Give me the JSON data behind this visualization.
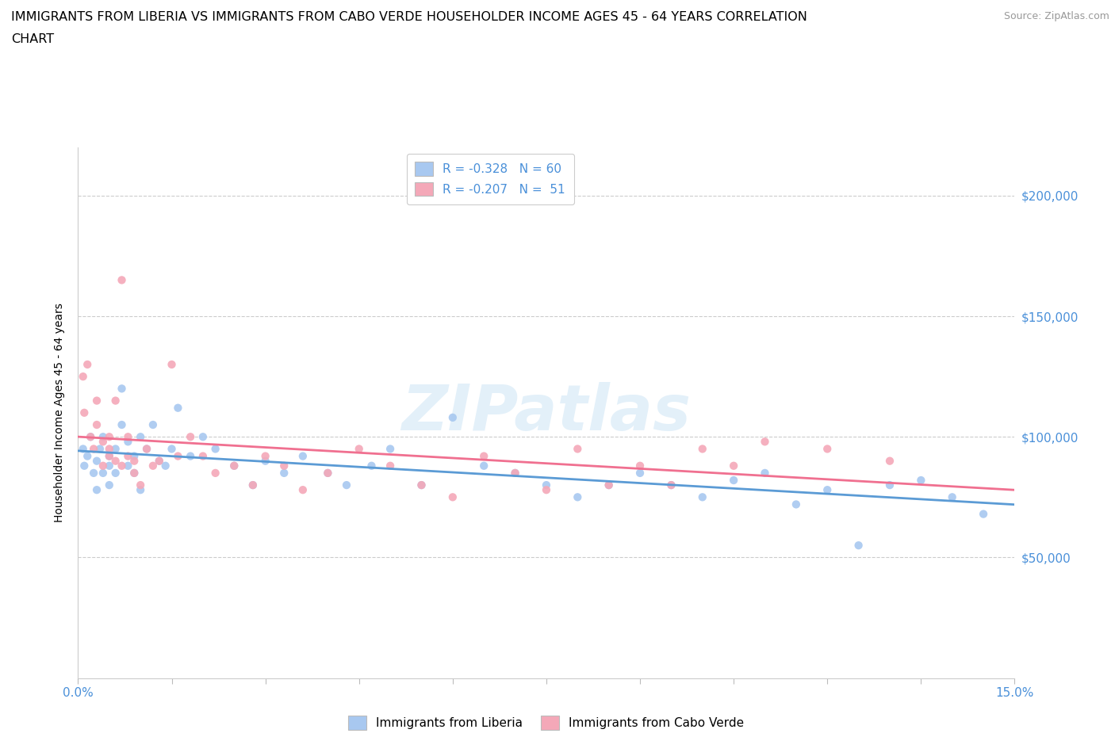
{
  "title_line1": "IMMIGRANTS FROM LIBERIA VS IMMIGRANTS FROM CABO VERDE HOUSEHOLDER INCOME AGES 45 - 64 YEARS CORRELATION",
  "title_line2": "CHART",
  "source": "Source: ZipAtlas.com",
  "ylabel": "Householder Income Ages 45 - 64 years",
  "xlim": [
    0.0,
    0.15
  ],
  "ylim": [
    0,
    220000
  ],
  "yticks": [
    0,
    50000,
    100000,
    150000,
    200000
  ],
  "ytick_labels_right": [
    "",
    "$50,000",
    "$100,000",
    "$150,000",
    "$200,000"
  ],
  "xticks": [
    0.0,
    0.015,
    0.03,
    0.045,
    0.06,
    0.075,
    0.09,
    0.105,
    0.12,
    0.135,
    0.15
  ],
  "liberia_color": "#a8c8f0",
  "cabo_verde_color": "#f4a8b8",
  "liberia_line_color": "#5b9bd5",
  "cabo_verde_line_color": "#f07090",
  "legend_label1": "R = -0.328   N = 60",
  "legend_label2": "R = -0.207   N =  51",
  "watermark_text": "ZIPatlas",
  "bottom_legend1": "Immigrants from Liberia",
  "bottom_legend2": "Immigrants from Cabo Verde",
  "liberia_x": [
    0.0008,
    0.001,
    0.0015,
    0.002,
    0.0025,
    0.003,
    0.003,
    0.0035,
    0.004,
    0.004,
    0.005,
    0.005,
    0.005,
    0.006,
    0.006,
    0.007,
    0.007,
    0.008,
    0.008,
    0.009,
    0.009,
    0.01,
    0.01,
    0.011,
    0.012,
    0.013,
    0.014,
    0.015,
    0.016,
    0.018,
    0.02,
    0.022,
    0.025,
    0.028,
    0.03,
    0.033,
    0.036,
    0.04,
    0.043,
    0.047,
    0.05,
    0.055,
    0.06,
    0.065,
    0.07,
    0.075,
    0.08,
    0.085,
    0.09,
    0.095,
    0.1,
    0.105,
    0.11,
    0.115,
    0.12,
    0.125,
    0.13,
    0.135,
    0.14,
    0.145
  ],
  "liberia_y": [
    95000,
    88000,
    92000,
    100000,
    85000,
    90000,
    78000,
    95000,
    85000,
    100000,
    92000,
    88000,
    80000,
    95000,
    85000,
    105000,
    120000,
    98000,
    88000,
    92000,
    85000,
    100000,
    78000,
    95000,
    105000,
    90000,
    88000,
    95000,
    112000,
    92000,
    100000,
    95000,
    88000,
    80000,
    90000,
    85000,
    92000,
    85000,
    80000,
    88000,
    95000,
    80000,
    108000,
    88000,
    85000,
    80000,
    75000,
    80000,
    85000,
    80000,
    75000,
    82000,
    85000,
    72000,
    78000,
    55000,
    80000,
    82000,
    75000,
    68000
  ],
  "cabo_verde_x": [
    0.0008,
    0.001,
    0.0015,
    0.002,
    0.0025,
    0.003,
    0.003,
    0.004,
    0.004,
    0.005,
    0.005,
    0.005,
    0.006,
    0.006,
    0.007,
    0.007,
    0.008,
    0.008,
    0.009,
    0.009,
    0.01,
    0.011,
    0.012,
    0.013,
    0.015,
    0.016,
    0.018,
    0.02,
    0.022,
    0.025,
    0.028,
    0.03,
    0.033,
    0.036,
    0.04,
    0.045,
    0.05,
    0.055,
    0.06,
    0.065,
    0.07,
    0.075,
    0.08,
    0.085,
    0.09,
    0.095,
    0.1,
    0.105,
    0.11,
    0.12,
    0.13
  ],
  "cabo_verde_y": [
    125000,
    110000,
    130000,
    100000,
    95000,
    115000,
    105000,
    88000,
    98000,
    92000,
    100000,
    95000,
    90000,
    115000,
    165000,
    88000,
    92000,
    100000,
    90000,
    85000,
    80000,
    95000,
    88000,
    90000,
    130000,
    92000,
    100000,
    92000,
    85000,
    88000,
    80000,
    92000,
    88000,
    78000,
    85000,
    95000,
    88000,
    80000,
    75000,
    92000,
    85000,
    78000,
    95000,
    80000,
    88000,
    80000,
    95000,
    88000,
    98000,
    95000,
    90000
  ]
}
